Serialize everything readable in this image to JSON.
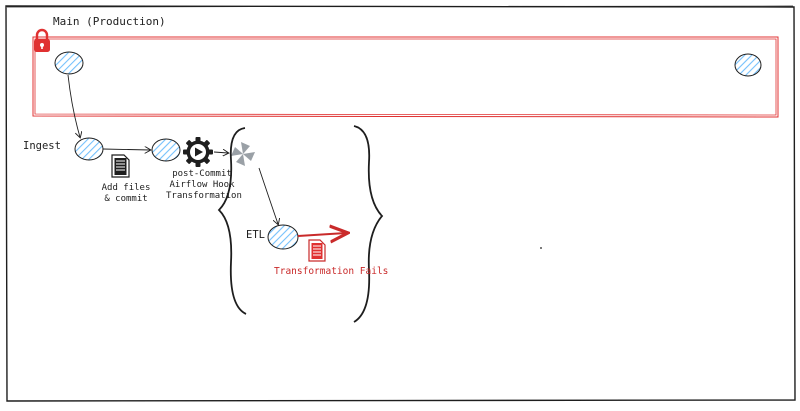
{
  "branches": {
    "main_label": "Main (Production)",
    "ingest_label": "Ingest",
    "etl_label": "ETL"
  },
  "steps": {
    "add_files": "Add files\n& commit",
    "hook": "post-Commit\nAirflow Hook\nTransformation",
    "failure": "Transformation Fails"
  },
  "colors": {
    "lock": "#e03131",
    "main_box": "#e03131",
    "node_fill": "#a5d8ff",
    "ink": "#1e1e1e",
    "failure": "#c92a2a",
    "airflow_icon": "#9aa0a6"
  },
  "icons": {
    "lock": "lock-icon",
    "document": "document-icon",
    "play_gear": "play-gear-icon",
    "pinwheel": "airflow-pinwheel-icon",
    "failed_doc": "failed-document-icon"
  }
}
